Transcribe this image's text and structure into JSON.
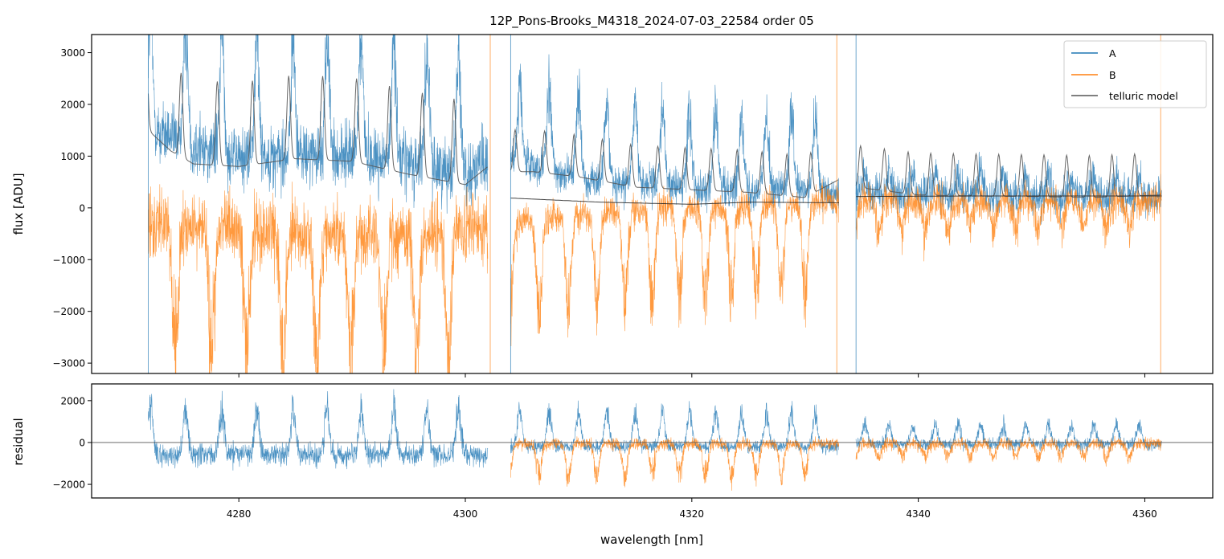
{
  "chart_data": [
    {
      "type": "line",
      "panel": "top",
      "title": "12P_Pons-Brooks_M4318_2024-07-03_22584  order 05",
      "xlabel": "",
      "ylabel": "flux [ADU]",
      "xlim": [
        4267,
        4366
      ],
      "ylim": [
        -3200,
        3350
      ],
      "yticks": [
        -3000,
        -2000,
        -1000,
        0,
        1000,
        2000,
        3000
      ],
      "ytick_labels": [
        "−3000",
        "−2000",
        "−1000",
        "0",
        "1000",
        "2000",
        "3000"
      ],
      "xticks": [
        4280,
        4300,
        4320,
        4340,
        4360
      ],
      "legend_position": "top-right",
      "colors": {
        "A": "#1f77b4",
        "B": "#ff7f0e",
        "telluric": "#555555"
      },
      "segments": [
        [
          4272,
          4302
        ],
        [
          4304,
          4333
        ],
        [
          4334.5,
          4361.5
        ]
      ],
      "emission_peaks": [
        4272.2,
        4275.3,
        4278.5,
        4281.6,
        4284.8,
        4287.8,
        4290.8,
        4293.7,
        4296.6,
        4299.4,
        4304.8,
        4307.4,
        4310.0,
        4312.5,
        4315.0,
        4317.4,
        4319.8,
        4322.1,
        4324.4,
        4326.6,
        4328.8,
        4330.9,
        4335.3,
        4337.4,
        4339.5,
        4341.5,
        4343.5,
        4345.5,
        4347.5,
        4349.5,
        4351.5,
        4353.5,
        4355.5,
        4357.5,
        4359.5
      ],
      "series": [
        {
          "name": "A",
          "x": [
            4272,
            4276,
            4280,
            4285,
            4290,
            4295,
            4300,
            4302,
            4304,
            4308,
            4312,
            4316,
            4320,
            4325,
            4330,
            4333,
            4334.5,
            4340,
            4345,
            4350,
            4355,
            4361.5
          ],
          "y": [
            1500,
            1200,
            1000,
            1000,
            1000,
            900,
            700,
            800,
            900,
            700,
            500,
            450,
            400,
            350,
            300,
            300,
            300,
            250,
            250,
            200,
            200,
            200
          ]
        },
        {
          "name": "B",
          "x": [
            4272,
            4276,
            4280,
            4285,
            4290,
            4295,
            4300,
            4302,
            4304,
            4308,
            4312,
            4316,
            4320,
            4325,
            4330,
            4333,
            4334.5,
            4340,
            4345,
            4350,
            4355,
            4361.5
          ],
          "y": [
            -300,
            -400,
            -400,
            -500,
            -500,
            -500,
            -400,
            -400,
            -300,
            -200,
            -100,
            0,
            0,
            50,
            100,
            100,
            150,
            150,
            150,
            150,
            150,
            150
          ]
        },
        {
          "name": "telluric model",
          "x": [
            4272,
            4274,
            4276,
            4280,
            4285,
            4290,
            4295,
            4300,
            4302,
            4304,
            4306,
            4310,
            4315,
            4320,
            4325,
            4330,
            4333,
            4334.5,
            4340,
            4345,
            4350,
            4355,
            4361.5
          ],
          "y": [
            1500,
            1100,
            850,
            800,
            950,
            900,
            650,
            450,
            800,
            700,
            700,
            600,
            400,
            350,
            300,
            200,
            550,
            400,
            250,
            230,
            220,
            200,
            250
          ]
        },
        {
          "name": "",
          "x": [
            4304,
            4312,
            4320,
            4325,
            4333,
            4334.5,
            4345,
            4361.5
          ],
          "y": [
            190,
            110,
            70,
            110,
            100,
            220,
            230,
            230
          ]
        }
      ]
    },
    {
      "type": "line",
      "panel": "bottom",
      "xlabel": "wavelength [nm]",
      "ylabel": "residual",
      "xlim": [
        4267,
        4366
      ],
      "ylim": [
        -2650,
        2800
      ],
      "yticks": [
        -2000,
        0,
        2000
      ],
      "ytick_labels": [
        "−2000",
        "0",
        "2000"
      ],
      "xticks": [
        4280,
        4300,
        4320,
        4340,
        4360
      ],
      "xtick_labels": [
        "4280",
        "4300",
        "4320",
        "4340",
        "4360"
      ],
      "hline": 0,
      "series": [
        {
          "name": "A",
          "segments": [
            [
              4272,
              4302
            ],
            [
              4304,
              4333
            ],
            [
              4334.5,
              4361.5
            ]
          ],
          "baseline": -500
        },
        {
          "name": "B",
          "segments": [
            [
              4304,
              4333
            ],
            [
              4334.5,
              4361.5
            ]
          ],
          "baseline": -100
        }
      ]
    }
  ]
}
